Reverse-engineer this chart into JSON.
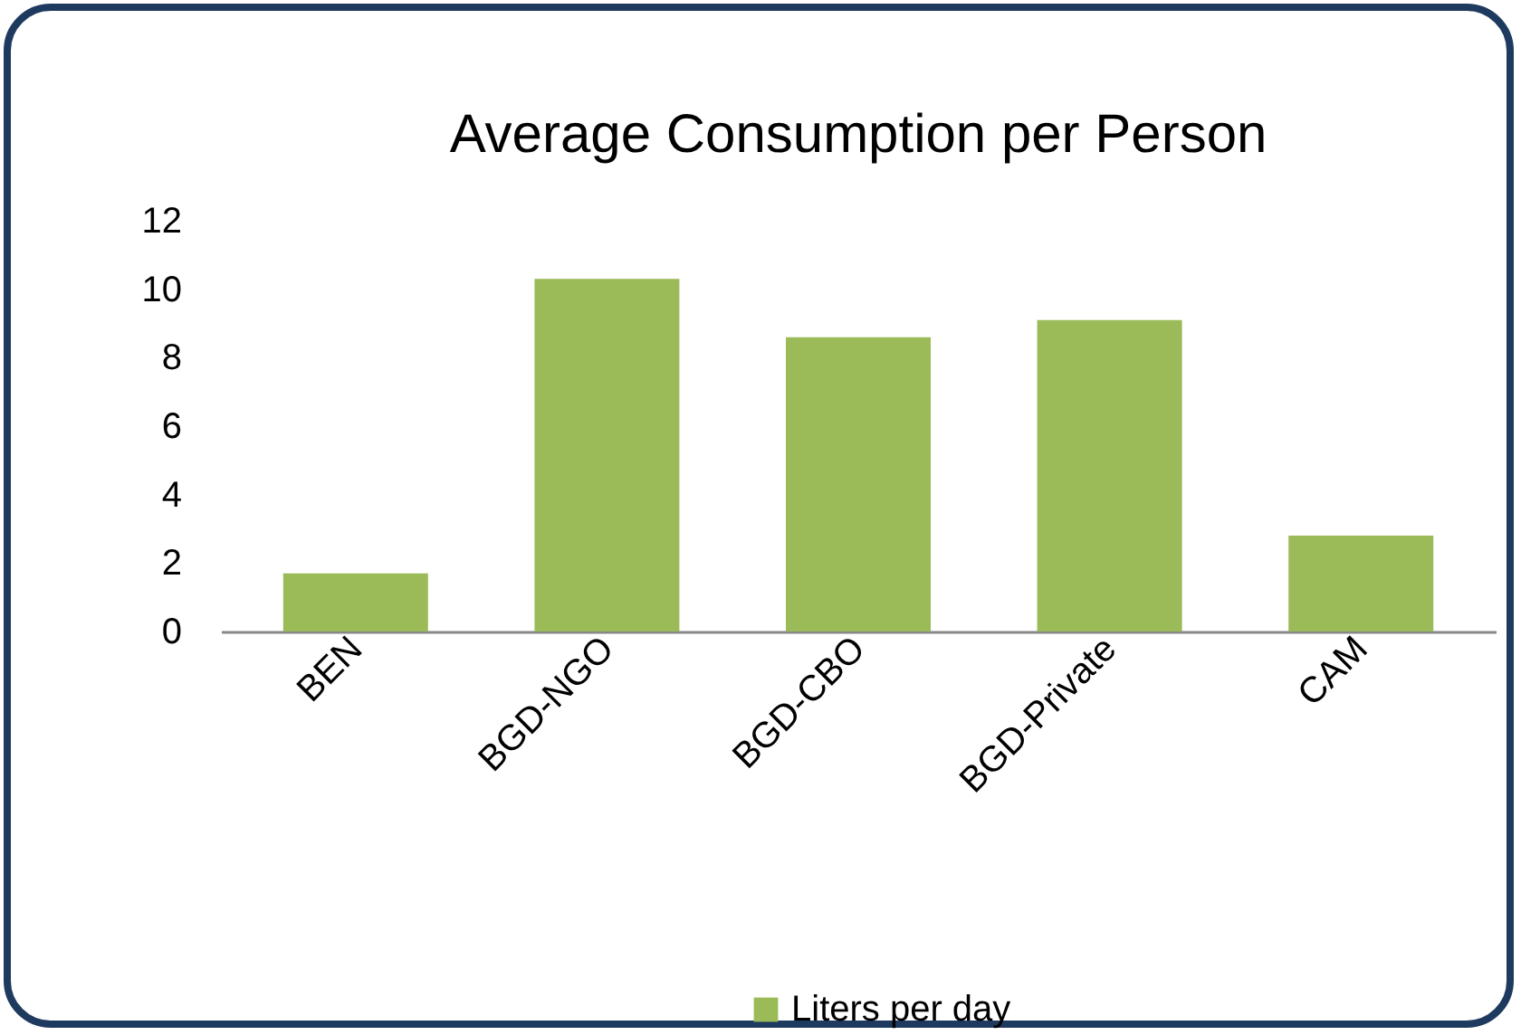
{
  "chart_data": {
    "type": "bar",
    "title": "Average Consumption per Person",
    "categories": [
      "BEN",
      "BGD-NGO",
      "BGD-CBO",
      "BGD-Private",
      "CAM"
    ],
    "series": [
      {
        "name": "Liters per day",
        "color": "#9bbb59",
        "values": [
          1.7,
          10.3,
          8.6,
          9.1,
          2.8
        ]
      }
    ],
    "ylim": [
      0,
      12
    ],
    "yticks": [
      0,
      2,
      4,
      6,
      8,
      10,
      12
    ],
    "grid": false,
    "legend": "bottom"
  }
}
